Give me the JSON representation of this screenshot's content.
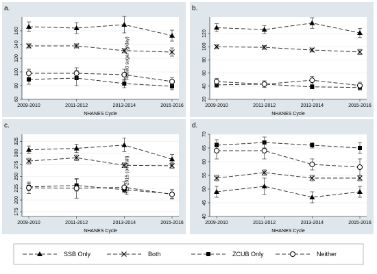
{
  "chart_data": [
    {
      "type": "line",
      "panel_label": "a.",
      "xlabel": "NHANES Cycle",
      "ylabel": "Added sugar (g/day)",
      "ylim": [
        60,
        180
      ],
      "yticks": [
        60,
        80,
        100,
        120,
        140,
        160
      ],
      "categories": [
        "2009-2010",
        "2011-2012",
        "2013-2014",
        "2015-2016"
      ],
      "series": [
        {
          "name": "SSB Only",
          "marker": "triangle",
          "values": [
            166,
            164,
            169,
            153
          ],
          "ci_low": [
            159,
            156,
            157,
            145
          ],
          "ci_high": [
            173,
            172,
            181,
            161
          ]
        },
        {
          "name": "Both",
          "marker": "x",
          "values": [
            138,
            138,
            131,
            129
          ],
          "ci_low": [
            135,
            135,
            128,
            123
          ],
          "ci_high": [
            141,
            141,
            134,
            135
          ]
        },
        {
          "name": "ZCUB Only",
          "marker": "square",
          "values": [
            89,
            91,
            83,
            79
          ],
          "ci_low": [
            82,
            80,
            77,
            74
          ],
          "ci_high": [
            96,
            102,
            89,
            84
          ]
        },
        {
          "name": "Neither",
          "marker": "circle",
          "values": [
            98,
            98,
            96,
            86
          ],
          "ci_low": [
            92,
            90,
            88,
            80
          ],
          "ci_high": [
            104,
            106,
            104,
            92
          ]
        }
      ]
    },
    {
      "type": "line",
      "panel_label": "b.",
      "xlabel": "NHANES Cycle",
      "ylim": [
        20,
        145
      ],
      "yticks": [
        20,
        40,
        60,
        80,
        100,
        120
      ],
      "categories": [
        "2009-2010",
        "2011-2012",
        "2013-2014",
        "2015-2016"
      ],
      "series": [
        {
          "name": "SSB Only",
          "marker": "triangle",
          "values": [
            129,
            126,
            136,
            121
          ],
          "ci_low": [
            123,
            120,
            128,
            114
          ],
          "ci_high": [
            135,
            132,
            144,
            128
          ]
        },
        {
          "name": "Both",
          "marker": "x",
          "values": [
            100,
            99,
            95,
            92
          ],
          "ci_low": [
            97,
            96,
            92,
            88
          ],
          "ci_high": [
            103,
            102,
            98,
            96
          ]
        },
        {
          "name": "ZCUB Only",
          "marker": "square",
          "values": [
            42,
            43,
            39,
            38
          ],
          "ci_low": [
            38,
            38,
            36,
            34
          ],
          "ci_high": [
            46,
            48,
            42,
            42
          ]
        },
        {
          "name": "Neither",
          "marker": "circle",
          "values": [
            47,
            43,
            49,
            41
          ],
          "ci_low": [
            42,
            38,
            43,
            36
          ],
          "ci_high": [
            52,
            48,
            55,
            46
          ]
        }
      ]
    },
    {
      "type": "line",
      "panel_label": "c.",
      "xlabel": "NHANES Cycle",
      "ylabel": "HEI-2015 (overall)",
      "ylim": [
        165,
        340
      ],
      "yticks": [
        175,
        200,
        225,
        250,
        275,
        300,
        325
      ],
      "categories": [
        "2009-2010",
        "2011-2012",
        "2013-2014",
        "2015-2016"
      ],
      "series": [
        {
          "name": "SSB Only",
          "marker": "triangle",
          "values": [
            307,
            310,
            317,
            287
          ],
          "ci_low": [
            299,
            301,
            303,
            277
          ],
          "ci_high": [
            315,
            319,
            332,
            297
          ]
        },
        {
          "name": "Both",
          "marker": "x",
          "values": [
            283,
            290,
            274,
            273
          ],
          "ci_low": [
            277,
            284,
            269,
            267
          ],
          "ci_high": [
            289,
            296,
            279,
            279
          ]
        },
        {
          "name": "ZCUB Only",
          "marker": "square",
          "values": [
            228,
            231,
            222,
            213
          ],
          "ci_low": [
            220,
            219,
            215,
            204
          ],
          "ci_high": [
            236,
            243,
            229,
            222
          ]
        },
        {
          "name": "Neither",
          "marker": "circle",
          "values": [
            226,
            225,
            227,
            212
          ],
          "ci_low": [
            214,
            204,
            215,
            202
          ],
          "ci_high": [
            238,
            246,
            239,
            222
          ]
        }
      ]
    },
    {
      "type": "line",
      "panel_label": "d.",
      "xlabel": "NHANES Cycle",
      "ylim": [
        40,
        70
      ],
      "yticks": [
        40,
        45,
        50,
        55,
        60,
        65,
        70
      ],
      "categories": [
        "2009-2010",
        "2011-2012",
        "2013-2014",
        "2015-2016"
      ],
      "series": [
        {
          "name": "SSB Only",
          "marker": "triangle",
          "values": [
            49,
            51,
            47,
            49
          ],
          "ci_low": [
            47,
            48,
            45,
            47
          ],
          "ci_high": [
            51,
            54,
            49,
            51
          ]
        },
        {
          "name": "Both",
          "marker": "x",
          "values": [
            54,
            56,
            54,
            54
          ],
          "ci_low": [
            53,
            55,
            53,
            53
          ],
          "ci_high": [
            55,
            57,
            55,
            55
          ]
        },
        {
          "name": "ZCUB Only",
          "marker": "square",
          "values": [
            66,
            67,
            66,
            65
          ],
          "ci_low": [
            64,
            65,
            65,
            63
          ],
          "ci_high": [
            68,
            69,
            67,
            67
          ]
        },
        {
          "name": "Neither",
          "marker": "circle",
          "values": [
            64,
            64,
            59,
            58
          ],
          "ci_low": [
            61,
            61,
            57,
            55
          ],
          "ci_high": [
            67,
            67,
            61,
            61
          ]
        }
      ]
    }
  ],
  "legend": {
    "items": [
      {
        "label": "SSB Only",
        "marker": "triangle"
      },
      {
        "label": "Both",
        "marker": "x"
      },
      {
        "label": "ZCUB Only",
        "marker": "square"
      },
      {
        "label": "Neither",
        "marker": "circle"
      }
    ]
  }
}
